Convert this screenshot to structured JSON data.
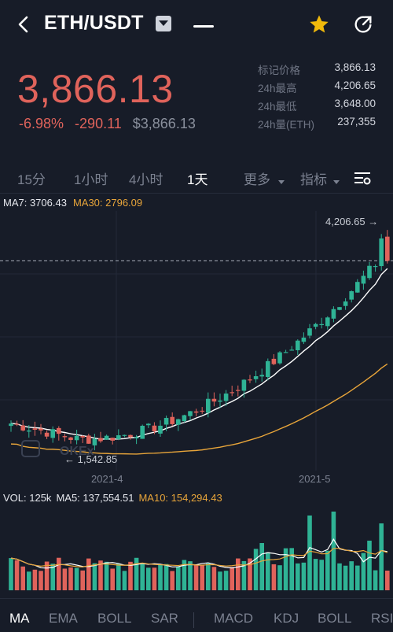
{
  "header": {
    "pair": "ETH/USDT",
    "icons": {
      "back": "back-arrow-icon",
      "dropdown": "dropdown-triangle-icon",
      "favorite": "star-icon",
      "share": "share-icon"
    },
    "favorite_color": "#f0b90b"
  },
  "price": {
    "last": "3,866.13",
    "change_pct": "-6.98%",
    "change_abs": "-290.11",
    "usd_equiv": "$3,866.13",
    "down_color": "#e0635b",
    "up_color": "#2fb395"
  },
  "stats": [
    {
      "label": "标记价格",
      "value": "3,866.13"
    },
    {
      "label": "24h最高",
      "value": "4,206.65"
    },
    {
      "label": "24h最低",
      "value": "3,648.00"
    },
    {
      "label": "24h量(ETH)",
      "value": "237,355"
    }
  ],
  "intervals": [
    {
      "label": "15分"
    },
    {
      "label": "1小时"
    },
    {
      "label": "4小时"
    },
    {
      "label": "1天",
      "active": true
    },
    {
      "label": "更多"
    },
    {
      "label": "指标"
    }
  ],
  "ma_legend": {
    "ma7": "MA7: 3706.43",
    "ma30": "MA30: 2796.09"
  },
  "chart": {
    "high_label": "4,206.65 →",
    "low_label": "← 1,542.85",
    "x_labels": [
      "2021-4",
      "2021-5"
    ],
    "watermark": "OKEx"
  },
  "volume_legend": {
    "vol": "VOL: 125k",
    "ma5": "MA5: 137,554.51",
    "ma10": "MA10: 154,294.43"
  },
  "indicators": [
    {
      "label": "MA",
      "active": true
    },
    {
      "label": "EMA"
    },
    {
      "label": "BOLL"
    },
    {
      "label": "SAR"
    },
    {
      "label": "MACD"
    },
    {
      "label": "KDJ"
    },
    {
      "label": "BOLL"
    },
    {
      "label": "RSI"
    }
  ]
}
